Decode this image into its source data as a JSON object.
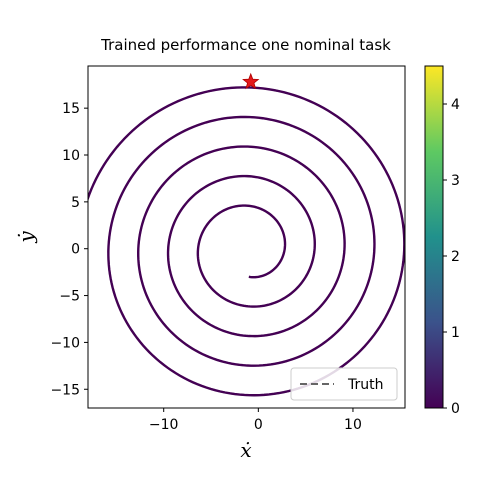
{
  "chart_data": {
    "type": "line",
    "title": "Trained performance one nominal task",
    "xlabel": "ẋ",
    "ylabel": "ẏ",
    "xlim": [
      -18,
      15.5
    ],
    "ylim": [
      -17,
      19.5
    ],
    "xticks": [
      -10,
      0,
      10
    ],
    "xtick_labels": [
      "−10",
      "0",
      "10"
    ],
    "yticks": [
      -15,
      -10,
      -5,
      0,
      5,
      10,
      15
    ],
    "ytick_labels": [
      "−15",
      "−10",
      "−5",
      "0",
      "5",
      "10",
      "15"
    ],
    "grid": false,
    "legend": {
      "location": "lower-right",
      "entries": [
        "Truth"
      ]
    },
    "series": [
      {
        "name": "Truth",
        "style": "dashed",
        "color": "#666666",
        "spiral": {
          "center": [
            -1.0,
            0.0
          ],
          "r_start": 3.0,
          "r_end": 18.0,
          "turns": 4.75,
          "start_angle_deg": -90
        }
      },
      {
        "style": "solid",
        "colormap": "viridis",
        "color_value": 0.05,
        "spiral": {
          "center": [
            -1.0,
            0.0
          ],
          "r_start": 3.0,
          "r_end": 18.0,
          "turns": 4.75,
          "start_angle_deg": -90
        }
      }
    ],
    "start_marker": {
      "x": -0.8,
      "y": 17.8,
      "shape": "star",
      "color": "#e31a1c"
    },
    "colorbar": {
      "colormap": "viridis",
      "range": [
        0,
        4.5
      ],
      "ticks": [
        0,
        1,
        2,
        3,
        4
      ],
      "tick_labels": [
        "0",
        "1",
        "2",
        "3",
        "4"
      ],
      "colors": [
        "#440154",
        "#3b528b",
        "#21918c",
        "#5ec962",
        "#fde725"
      ]
    }
  }
}
